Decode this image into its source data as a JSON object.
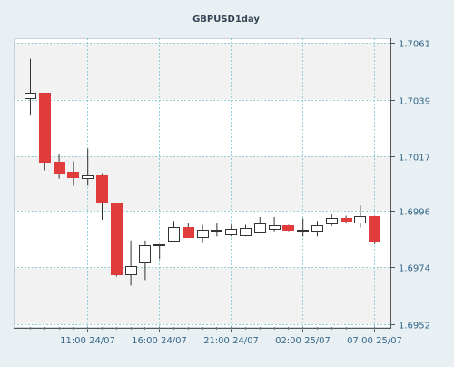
{
  "chart_data": {
    "type": "candlestick",
    "title": "GBPUSD1day",
    "y_ticks": [
      "1.7061",
      "1.7039",
      "1.7017",
      "1.6996",
      "1.6974",
      "1.6952"
    ],
    "ylim": [
      1.6952,
      1.7061
    ],
    "x_tick_labels": [
      "11:00 24/07",
      "16:00 24/07",
      "21:00 24/07",
      "02:00 25/07",
      "07:00 25/07"
    ],
    "grid": true,
    "colors": {
      "up": "#ffffff",
      "down": "#e03c3c",
      "wick": "#333333",
      "plot_band": "#f2f2f2"
    },
    "candles": [
      {
        "o": 1.70397,
        "h": 1.70548,
        "l": 1.70328,
        "c": 1.70417
      },
      {
        "o": 1.70417,
        "h": 1.70417,
        "l": 1.70116,
        "c": 1.70151
      },
      {
        "o": 1.70151,
        "h": 1.7018,
        "l": 1.70084,
        "c": 1.70109
      },
      {
        "o": 1.70109,
        "h": 1.70151,
        "l": 1.70056,
        "c": 1.70088
      },
      {
        "o": 1.70084,
        "h": 1.702,
        "l": 1.70056,
        "c": 1.70095
      },
      {
        "o": 1.70095,
        "h": 1.70105,
        "l": 1.69924,
        "c": 1.6999
      },
      {
        "o": 1.6999,
        "h": 1.6999,
        "l": 1.69705,
        "c": 1.69713
      },
      {
        "o": 1.69713,
        "h": 1.69844,
        "l": 1.6967,
        "c": 1.69745
      },
      {
        "o": 1.69763,
        "h": 1.69844,
        "l": 1.69691,
        "c": 1.69827
      },
      {
        "o": 1.6983,
        "h": 1.6983,
        "l": 1.69772,
        "c": 1.6983
      },
      {
        "o": 1.69844,
        "h": 1.6992,
        "l": 1.69844,
        "c": 1.69895
      },
      {
        "o": 1.69895,
        "h": 1.6991,
        "l": 1.69855,
        "c": 1.69858
      },
      {
        "o": 1.6986,
        "h": 1.69905,
        "l": 1.69837,
        "c": 1.69887
      },
      {
        "o": 1.6988,
        "h": 1.6991,
        "l": 1.6986,
        "c": 1.69885
      },
      {
        "o": 1.6987,
        "h": 1.69905,
        "l": 1.6986,
        "c": 1.6989
      },
      {
        "o": 1.69865,
        "h": 1.69905,
        "l": 1.6986,
        "c": 1.69893
      },
      {
        "o": 1.6988,
        "h": 1.69935,
        "l": 1.69875,
        "c": 1.6991
      },
      {
        "o": 1.6989,
        "h": 1.69935,
        "l": 1.6988,
        "c": 1.69905
      },
      {
        "o": 1.69905,
        "h": 1.69905,
        "l": 1.6988,
        "c": 1.69888
      },
      {
        "o": 1.6988,
        "h": 1.6993,
        "l": 1.6986,
        "c": 1.69885
      },
      {
        "o": 1.69885,
        "h": 1.6992,
        "l": 1.6986,
        "c": 1.69905
      },
      {
        "o": 1.6991,
        "h": 1.69945,
        "l": 1.699,
        "c": 1.6993
      },
      {
        "o": 1.6993,
        "h": 1.6994,
        "l": 1.6991,
        "c": 1.6992
      },
      {
        "o": 1.69915,
        "h": 1.6998,
        "l": 1.69895,
        "c": 1.6994
      },
      {
        "o": 1.6994,
        "h": 1.6994,
        "l": 1.6983,
        "c": 1.69845
      }
    ]
  }
}
